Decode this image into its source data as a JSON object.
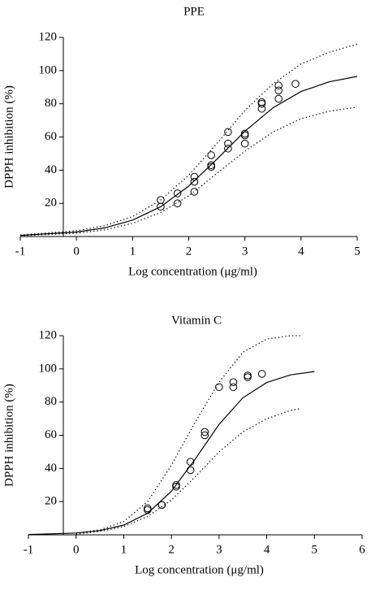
{
  "chart_data": [
    {
      "type": "scatter",
      "title": "PPE",
      "xlabel": "Log concentration (μg/ml)",
      "ylabel": "DPPH inhibition (%)",
      "xlim": [
        -1,
        5
      ],
      "ylim": [
        0,
        120
      ],
      "xticks": [
        -1,
        0,
        1,
        2,
        3,
        4,
        5
      ],
      "yticks": [
        20,
        40,
        60,
        80,
        100,
        120
      ],
      "x": [
        1.5,
        1.5,
        1.8,
        1.8,
        2.1,
        2.1,
        2.1,
        2.4,
        2.4,
        2.4,
        2.7,
        2.7,
        2.7,
        3,
        3,
        3,
        3.3,
        3.3,
        3.3,
        3.6,
        3.6,
        3.6,
        3.9
      ],
      "values": [
        22,
        18,
        26,
        20,
        36,
        33,
        27,
        49,
        43,
        42,
        63,
        56,
        53,
        62,
        61,
        56,
        81,
        80,
        77,
        91,
        88,
        83,
        92
      ],
      "curves": [
        {
          "style": "solid",
          "x": [
            -1,
            0,
            0.5,
            1,
            1.5,
            2,
            2.5,
            3,
            3.5,
            4,
            4.5,
            5
          ],
          "values": [
            0.7,
            2.7,
            5.2,
            9.9,
            18,
            30.4,
            46.6,
            63.5,
            77.6,
            87.4,
            93.2,
            96.5
          ]
        },
        {
          "style": "dotted",
          "x": [
            -1,
            0,
            0.5,
            1,
            1.5,
            2,
            2.5,
            3,
            3.5,
            4,
            4.5,
            5
          ],
          "values": [
            1,
            3.5,
            6.5,
            12,
            22,
            37,
            56,
            76,
            92,
            104,
            111,
            116
          ]
        },
        {
          "style": "dotted",
          "x": [
            -1,
            0,
            0.5,
            1,
            1.5,
            2,
            2.5,
            3,
            3.5,
            4,
            4.5,
            5
          ],
          "values": [
            0.5,
            2,
            4,
            8,
            14.5,
            24.5,
            38,
            51.5,
            63,
            71,
            75.5,
            78
          ]
        }
      ]
    },
    {
      "type": "scatter",
      "title": "Vitamin C",
      "xlabel": "Log concentration (μg/ml)",
      "ylabel": "DPPH inhibition (%)",
      "xlim": [
        -1,
        6
      ],
      "ylim": [
        0,
        120
      ],
      "xticks": [
        -1,
        0,
        1,
        2,
        3,
        4,
        5,
        6
      ],
      "yticks": [
        20,
        40,
        60,
        80,
        100,
        120
      ],
      "x": [
        1.5,
        1.5,
        1.8,
        1.8,
        2.1,
        2.1,
        2.4,
        2.4,
        2.7,
        2.7,
        3,
        3.3,
        3.3,
        3.6,
        3.6,
        3.9
      ],
      "values": [
        16,
        15,
        18,
        18,
        30,
        29,
        44,
        39,
        62,
        60,
        89,
        92,
        89,
        96,
        95,
        97
      ],
      "curves": [
        {
          "style": "solid",
          "x": [
            -1,
            0,
            0.5,
            1,
            1.5,
            2,
            2.5,
            3,
            3.5,
            4,
            4.5,
            5
          ],
          "values": [
            0.2,
            1.1,
            2.6,
            5.9,
            13,
            26.2,
            45.7,
            66.6,
            82.6,
            91.8,
            96.4,
            98.4
          ]
        },
        {
          "style": "dotted",
          "x": [
            0,
            0.5,
            1,
            1.5,
            2,
            2.5,
            3,
            3.5,
            4,
            4.5,
            4.7
          ],
          "values": [
            1,
            3,
            8,
            20,
            42,
            68,
            92,
            110,
            118,
            120,
            120
          ]
        },
        {
          "style": "dotted",
          "x": [
            0,
            0.5,
            1,
            1.5,
            2,
            2.5,
            3,
            3.5,
            4,
            4.5,
            4.7
          ],
          "values": [
            0.5,
            2,
            5,
            11,
            21,
            35,
            50,
            62,
            70,
            75,
            76
          ]
        }
      ]
    }
  ]
}
